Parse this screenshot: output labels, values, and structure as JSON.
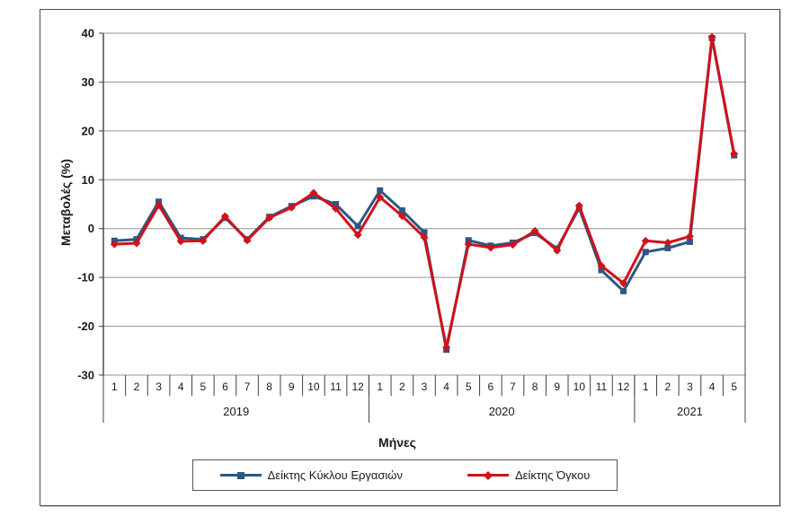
{
  "figure": {
    "y_axis_title": "Μεταβολές (%)",
    "x_axis_title": "Μήνες"
  },
  "legend": {
    "items": [
      {
        "label": "Δείκτης Κύκλου Εργασιών",
        "color": "#2B5884",
        "marker": "square"
      },
      {
        "label": "Δείκτης Όγκου",
        "color": "#D0121B",
        "marker": "diamond"
      }
    ]
  },
  "chart_data": {
    "type": "line",
    "title": "",
    "xlabel": "Μήνες",
    "ylabel": "Μεταβολές (%)",
    "ylim": [
      -30,
      40
    ],
    "yticks": [
      40,
      30,
      20,
      10,
      0,
      -10,
      -20,
      -30
    ],
    "grid": true,
    "legend_position": "bottom",
    "x_categories": [
      "1",
      "2",
      "3",
      "4",
      "5",
      "6",
      "7",
      "8",
      "9",
      "10",
      "11",
      "12",
      "1",
      "2",
      "3",
      "4",
      "5",
      "6",
      "7",
      "8",
      "9",
      "10",
      "11",
      "12",
      "1",
      "2",
      "3",
      "4",
      "5"
    ],
    "year_groups": [
      {
        "label": "2019",
        "span": 12
      },
      {
        "label": "2020",
        "span": 12
      },
      {
        "label": "2021",
        "span": 5
      }
    ],
    "series": [
      {
        "name": "Δείκτης Κύκλου Εργασιών",
        "color": "#2B5884",
        "marker": "square",
        "values": [
          -2.5,
          -2.2,
          5.5,
          -1.9,
          -2.2,
          2.2,
          -2.2,
          2.4,
          4.6,
          6.6,
          5.0,
          0.5,
          7.8,
          3.7,
          -0.8,
          -24.8,
          -2.4,
          -3.5,
          -2.9,
          -0.9,
          -4.1,
          4.2,
          -8.5,
          -12.8,
          -4.8,
          -4.0,
          -2.7,
          39.0,
          15.0
        ]
      },
      {
        "name": "Δείκτης Όγκου",
        "color": "#D0121B",
        "marker": "diamond",
        "values": [
          -3.2,
          -3.0,
          4.8,
          -2.6,
          -2.5,
          2.5,
          -2.4,
          2.2,
          4.3,
          7.3,
          4.1,
          -1.3,
          6.4,
          2.6,
          -1.8,
          -24.3,
          -3.2,
          -3.9,
          -3.3,
          -0.5,
          -4.5,
          4.7,
          -7.6,
          -11.2,
          -2.5,
          -2.9,
          -1.6,
          39.2,
          15.3
        ]
      }
    ]
  }
}
